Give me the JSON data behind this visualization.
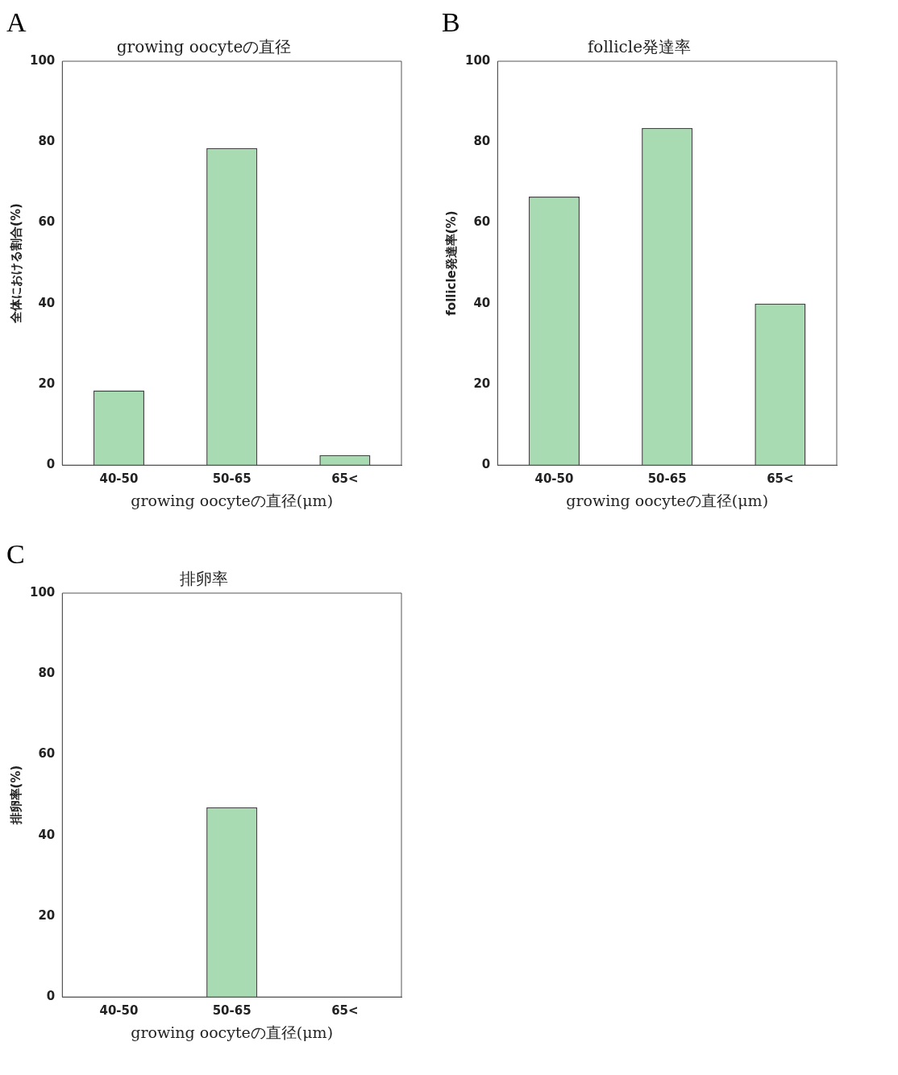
{
  "chart_data": [
    {
      "type": "bar",
      "title": "growing oocyteの直径",
      "ylabel": "全体における割合(%)",
      "xlabel": "growing oocyteの直径(μm)",
      "categories": [
        "40-50",
        "50-65",
        "65<"
      ],
      "values": [
        18.5,
        78.5,
        2.5
      ],
      "color": "#a9dbb2",
      "ylim": [
        0,
        100
      ],
      "yticks": [
        0,
        20,
        40,
        60,
        80,
        100
      ],
      "annotations": [
        "A"
      ]
    },
    {
      "type": "bar",
      "title": "follicle発達率",
      "ylabel": "follicle発達率(%)",
      "xlabel": "growing oocyteの直径(μm)",
      "categories": [
        "40-50",
        "50-65",
        "65<"
      ],
      "values": [
        66.5,
        83.5,
        40
      ],
      "color": "#a9dbb2",
      "ylim": [
        0,
        100
      ],
      "yticks": [
        0,
        20,
        40,
        60,
        80,
        100
      ],
      "annotations": [
        "B"
      ]
    },
    {
      "type": "bar",
      "title": "排卵率",
      "ylabel": "排卵率(%)",
      "xlabel": "growing oocyteの直径(μm)",
      "categories": [
        "40-50",
        "50-65",
        "65<"
      ],
      "values": [
        0,
        47,
        0
      ],
      "color": "#a9dbb2",
      "ylim": [
        0,
        100
      ],
      "yticks": [
        0,
        20,
        40,
        60,
        80,
        100
      ],
      "annotations": [
        "C"
      ]
    }
  ]
}
